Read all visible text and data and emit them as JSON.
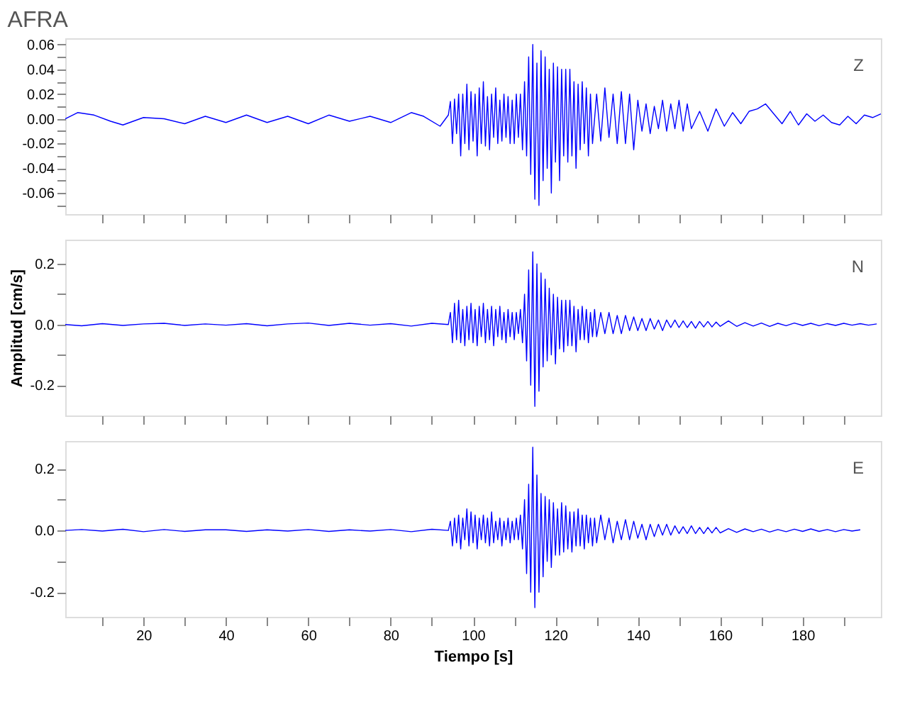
{
  "chart_data": [
    {
      "type": "line",
      "title": "AFRA",
      "annotations": [
        "Z"
      ],
      "xlim": [
        1,
        199
      ],
      "ylim": [
        -0.077,
        0.065
      ],
      "grid": false,
      "tick_labels": "y",
      "marker": "none",
      "line_style": "solid",
      "xticks": [
        {
          "value": 10,
          "label": null
        },
        {
          "value": 20,
          "label": null
        },
        {
          "value": 30,
          "label": null
        },
        {
          "value": 40,
          "label": null
        },
        {
          "value": 50,
          "label": null
        },
        {
          "value": 60,
          "label": null
        },
        {
          "value": 70,
          "label": null
        },
        {
          "value": 80,
          "label": null
        },
        {
          "value": 90,
          "label": null
        },
        {
          "value": 100,
          "label": null
        },
        {
          "value": 110,
          "label": null
        },
        {
          "value": 120,
          "label": null
        },
        {
          "value": 130,
          "label": null
        },
        {
          "value": 140,
          "label": null
        },
        {
          "value": 150,
          "label": null
        },
        {
          "value": 160,
          "label": null
        },
        {
          "value": 170,
          "label": null
        },
        {
          "value": 180,
          "label": null
        },
        {
          "value": 190,
          "label": null
        }
      ],
      "yticks": [
        {
          "value": -0.07,
          "label": null
        },
        {
          "value": -0.06,
          "label": "-0.06"
        },
        {
          "value": -0.05,
          "label": null
        },
        {
          "value": -0.04,
          "label": "-0.04"
        },
        {
          "value": -0.03,
          "label": null
        },
        {
          "value": -0.02,
          "label": "-0.02"
        },
        {
          "value": -0.01,
          "label": null
        },
        {
          "value": 0,
          "label": "0.00"
        },
        {
          "value": 0.01,
          "label": null
        },
        {
          "value": 0.02,
          "label": "0.02"
        },
        {
          "value": 0.03,
          "label": null
        },
        {
          "value": 0.04,
          "label": "0.04"
        },
        {
          "value": 0.05,
          "label": null
        },
        {
          "value": 0.06,
          "label": "0.06"
        }
      ],
      "series": [
        {
          "color": "#0000ff",
          "x": [
            1,
            4,
            8,
            12,
            15,
            20,
            25,
            30,
            35,
            40,
            45,
            50,
            55,
            60,
            65,
            70,
            75,
            80,
            85,
            88,
            92,
            94,
            94.5,
            95,
            95.5,
            96,
            96.5,
            97,
            97.5,
            98,
            98.5,
            99,
            99.5,
            100,
            100.5,
            101,
            101.5,
            102,
            102.5,
            103,
            103.5,
            104,
            104.5,
            105,
            105.5,
            106,
            106.5,
            107,
            107.5,
            108,
            108.5,
            109,
            109.5,
            110,
            110.5,
            111,
            111.5,
            112,
            112.5,
            113,
            113.5,
            114,
            114.5,
            115,
            115.5,
            116,
            116.5,
            117,
            117.5,
            118,
            118.5,
            119,
            119.5,
            120,
            120.5,
            121,
            121.5,
            122,
            122.5,
            123,
            123.5,
            124,
            124.5,
            125,
            125.5,
            126,
            126.5,
            127,
            127.5,
            128,
            128.5,
            129,
            130,
            131,
            132,
            133,
            134,
            135,
            136,
            137,
            138,
            139,
            140,
            141,
            142,
            143,
            144,
            145,
            146,
            147,
            148,
            149,
            150,
            151,
            152,
            153,
            155,
            157,
            159,
            161,
            163,
            165,
            167,
            169,
            171,
            173,
            175,
            177,
            179,
            181,
            183,
            185,
            187,
            189,
            191,
            193,
            195,
            197,
            199
          ],
          "values": [
            0,
            0.005,
            0.003,
            -0.002,
            -0.005,
            0.001,
            0.0,
            -0.004,
            0.002,
            -0.003,
            0.003,
            -0.003,
            0.002,
            -0.004,
            0.003,
            -0.002,
            0.002,
            -0.003,
            0.005,
            0.002,
            -0.006,
            0.003,
            0.014,
            -0.02,
            0.016,
            -0.012,
            0.02,
            -0.03,
            0.02,
            -0.02,
            0.028,
            -0.025,
            0.022,
            -0.018,
            0.02,
            -0.03,
            0.025,
            -0.02,
            0.03,
            -0.022,
            0.018,
            -0.025,
            0.02,
            -0.015,
            0.025,
            -0.02,
            0.015,
            -0.018,
            0.02,
            -0.015,
            0.018,
            -0.02,
            0.015,
            -0.02,
            0.02,
            -0.015,
            0.02,
            -0.025,
            0.03,
            -0.03,
            0.05,
            -0.045,
            0.06,
            -0.065,
            0.045,
            -0.07,
            0.055,
            -0.05,
            0.05,
            -0.04,
            0.04,
            -0.06,
            0.045,
            -0.035,
            0.042,
            -0.05,
            0.04,
            -0.03,
            0.04,
            -0.035,
            0.04,
            -0.03,
            0.03,
            -0.04,
            0.028,
            -0.025,
            0.03,
            -0.02,
            0.025,
            -0.03,
            0.02,
            -0.02,
            0.02,
            -0.018,
            0.025,
            -0.015,
            0.02,
            -0.02,
            0.022,
            -0.02,
            0.02,
            -0.025,
            0.015,
            -0.01,
            0.012,
            -0.012,
            0.01,
            -0.008,
            0.015,
            -0.01,
            0.012,
            -0.008,
            0.015,
            -0.01,
            0.012,
            -0.008,
            0.006,
            -0.01,
            0.008,
            -0.006,
            0.005,
            -0.004,
            0.006,
            0.008,
            0.012,
            0.004,
            -0.004,
            0.006,
            -0.005,
            0.004,
            -0.002,
            0.003,
            -0.003,
            -0.005,
            0.002,
            -0.004,
            0.003,
            0.001,
            0.004
          ]
        }
      ]
    },
    {
      "type": "line",
      "ylabel": "Amplitud [cm/s]",
      "annotations": [
        "N"
      ],
      "xlim": [
        1,
        199
      ],
      "ylim": [
        -0.3,
        0.28
      ],
      "grid": false,
      "tick_labels": "y",
      "marker": "none",
      "line_style": "solid",
      "xticks": [
        {
          "value": 10,
          "label": null
        },
        {
          "value": 20,
          "label": null
        },
        {
          "value": 30,
          "label": null
        },
        {
          "value": 40,
          "label": null
        },
        {
          "value": 50,
          "label": null
        },
        {
          "value": 60,
          "label": null
        },
        {
          "value": 70,
          "label": null
        },
        {
          "value": 80,
          "label": null
        },
        {
          "value": 90,
          "label": null
        },
        {
          "value": 100,
          "label": null
        },
        {
          "value": 110,
          "label": null
        },
        {
          "value": 120,
          "label": null
        },
        {
          "value": 130,
          "label": null
        },
        {
          "value": 140,
          "label": null
        },
        {
          "value": 150,
          "label": null
        },
        {
          "value": 160,
          "label": null
        },
        {
          "value": 170,
          "label": null
        },
        {
          "value": 180,
          "label": null
        },
        {
          "value": 190,
          "label": null
        }
      ],
      "yticks": [
        {
          "value": -0.2,
          "label": "-0.2"
        },
        {
          "value": -0.1,
          "label": null
        },
        {
          "value": 0,
          "label": "0.0"
        },
        {
          "value": 0.1,
          "label": null
        },
        {
          "value": 0.2,
          "label": "0.2"
        }
      ],
      "series": [
        {
          "color": "#0000ff",
          "x": [
            1,
            5,
            10,
            15,
            20,
            25,
            30,
            35,
            40,
            45,
            50,
            55,
            60,
            65,
            70,
            75,
            80,
            85,
            90,
            94,
            94.5,
            95,
            95.5,
            96,
            96.5,
            97,
            97.5,
            98,
            98.5,
            99,
            99.5,
            100,
            100.5,
            101,
            101.5,
            102,
            102.5,
            103,
            103.5,
            104,
            104.5,
            105,
            105.5,
            106,
            106.5,
            107,
            107.5,
            108,
            108.5,
            109,
            109.5,
            110,
            110.5,
            111,
            111.5,
            112,
            112.5,
            113,
            113.5,
            114,
            114.5,
            115,
            115.5,
            116,
            116.5,
            117,
            117.5,
            118,
            118.5,
            119,
            119.5,
            120,
            120.5,
            121,
            121.5,
            122,
            122.5,
            123,
            123.5,
            124,
            124.5,
            125,
            125.5,
            126,
            126.5,
            127,
            127.5,
            128,
            128.5,
            129,
            129.5,
            130,
            131,
            132,
            133,
            134,
            135,
            136,
            137,
            138,
            139,
            140,
            141,
            142,
            143,
            144,
            145,
            146,
            147,
            148,
            149,
            150,
            151,
            152,
            153,
            154,
            155,
            156,
            157,
            158,
            159,
            160,
            162,
            164,
            166,
            168,
            170,
            172,
            174,
            176,
            178,
            180,
            182,
            184,
            186,
            188,
            190,
            192,
            194,
            196,
            198
          ],
          "values": [
            0,
            -0.004,
            0.003,
            -0.003,
            0.002,
            0.004,
            -0.003,
            0.002,
            -0.002,
            0.003,
            -0.004,
            0.002,
            0.005,
            -0.003,
            0.004,
            -0.002,
            0.003,
            -0.005,
            0.004,
            0.0,
            0.04,
            -0.06,
            0.07,
            -0.05,
            0.08,
            -0.06,
            0.05,
            -0.07,
            0.06,
            -0.05,
            0.07,
            -0.06,
            0.05,
            -0.07,
            0.06,
            -0.04,
            0.07,
            -0.06,
            0.05,
            -0.05,
            0.06,
            -0.07,
            0.05,
            -0.04,
            0.06,
            -0.05,
            0.04,
            -0.06,
            0.05,
            -0.04,
            0.04,
            -0.05,
            0.04,
            -0.03,
            0.05,
            -0.06,
            0.1,
            -0.12,
            0.18,
            -0.2,
            0.24,
            -0.27,
            0.2,
            -0.22,
            0.17,
            -0.14,
            0.15,
            -0.12,
            0.12,
            -0.1,
            0.1,
            -0.13,
            0.09,
            -0.08,
            0.08,
            -0.09,
            0.08,
            -0.07,
            0.08,
            -0.07,
            0.06,
            -0.09,
            0.05,
            -0.05,
            0.06,
            -0.05,
            0.05,
            -0.06,
            0.04,
            -0.04,
            0.05,
            -0.04,
            0.04,
            -0.03,
            0.04,
            -0.03,
            0.03,
            -0.03,
            0.03,
            -0.02,
            0.025,
            -0.02,
            0.02,
            -0.02,
            0.02,
            -0.015,
            0.015,
            -0.02,
            0.015,
            -0.01,
            0.015,
            -0.01,
            0.012,
            -0.01,
            0.01,
            -0.012,
            0.01,
            -0.008,
            0.01,
            -0.008,
            0.008,
            -0.006,
            0.012,
            -0.006,
            0.006,
            -0.005,
            0.005,
            -0.006,
            0.004,
            -0.004,
            0.005,
            -0.003,
            0.004,
            -0.004,
            0.003,
            -0.003,
            0.004,
            -0.002,
            0.003,
            -0.002,
            0.002
          ]
        }
      ]
    },
    {
      "type": "line",
      "xlabel": "Tiempo [s]",
      "annotations": [
        "E"
      ],
      "xlim": [
        1,
        199
      ],
      "ylim": [
        -0.28,
        0.29
      ],
      "grid": false,
      "marker": "none",
      "line_style": "solid",
      "xticks": [
        {
          "value": 10,
          "label": null
        },
        20,
        {
          "value": 30,
          "label": null
        },
        40,
        {
          "value": 50,
          "label": null
        },
        60,
        {
          "value": 70,
          "label": null
        },
        80,
        {
          "value": 90,
          "label": null
        },
        100,
        {
          "value": 110,
          "label": null
        },
        120,
        {
          "value": 130,
          "label": null
        },
        140,
        {
          "value": 150,
          "label": null
        },
        160,
        {
          "value": 170,
          "label": null
        },
        180,
        {
          "value": 190,
          "label": null
        }
      ],
      "yticks": [
        {
          "value": -0.2,
          "label": "-0.2"
        },
        {
          "value": -0.1,
          "label": null
        },
        {
          "value": 0,
          "label": "0.0"
        },
        {
          "value": 0.1,
          "label": null
        },
        {
          "value": 0.2,
          "label": "0.2"
        }
      ],
      "series": [
        {
          "color": "#0000ff",
          "x": [
            1,
            5,
            10,
            15,
            20,
            25,
            30,
            35,
            40,
            45,
            50,
            55,
            60,
            65,
            70,
            75,
            80,
            85,
            90,
            94,
            94.5,
            95,
            95.5,
            96,
            96.5,
            97,
            97.5,
            98,
            98.5,
            99,
            99.5,
            100,
            100.5,
            101,
            101.5,
            102,
            102.5,
            103,
            103.5,
            104,
            104.5,
            105,
            105.5,
            106,
            106.5,
            107,
            107.5,
            108,
            108.5,
            109,
            109.5,
            110,
            110.5,
            111,
            111.5,
            112,
            112.5,
            113,
            113.5,
            114,
            114.5,
            115,
            115.5,
            116,
            116.5,
            117,
            117.5,
            118,
            118.5,
            119,
            119.5,
            120,
            120.5,
            121,
            121.5,
            122,
            122.5,
            123,
            123.5,
            124,
            124.5,
            125,
            125.5,
            126,
            126.5,
            127,
            127.5,
            128,
            128.5,
            129,
            129.5,
            130,
            131,
            132,
            133,
            134,
            135,
            136,
            137,
            138,
            139,
            140,
            141,
            142,
            143,
            144,
            145,
            146,
            147,
            148,
            149,
            150,
            151,
            152,
            153,
            154,
            155,
            156,
            157,
            158,
            159,
            160,
            162,
            164,
            166,
            168,
            170,
            172,
            174,
            176,
            178,
            180,
            182,
            184,
            186,
            188,
            190,
            192,
            194
          ],
          "values": [
            0,
            0.003,
            -0.002,
            0.004,
            -0.004,
            0.003,
            -0.003,
            0.002,
            0.002,
            -0.003,
            0.002,
            -0.002,
            0.003,
            -0.003,
            0.002,
            -0.002,
            0.003,
            -0.004,
            0.004,
            0.0,
            0.03,
            -0.05,
            0.04,
            -0.04,
            0.05,
            -0.06,
            0.04,
            -0.03,
            0.07,
            -0.05,
            0.06,
            -0.04,
            0.05,
            -0.06,
            0.04,
            -0.03,
            0.05,
            -0.04,
            0.04,
            -0.05,
            0.06,
            -0.04,
            0.03,
            -0.03,
            0.04,
            -0.05,
            0.03,
            -0.03,
            0.04,
            -0.04,
            0.03,
            -0.03,
            0.04,
            -0.03,
            0.05,
            -0.06,
            0.1,
            -0.14,
            0.15,
            -0.2,
            0.27,
            -0.25,
            0.18,
            -0.2,
            0.12,
            -0.15,
            0.11,
            -0.1,
            0.1,
            -0.12,
            0.09,
            -0.08,
            0.07,
            -0.08,
            0.09,
            -0.07,
            0.08,
            -0.06,
            0.06,
            -0.07,
            0.06,
            -0.05,
            0.07,
            -0.05,
            0.05,
            -0.06,
            0.05,
            -0.04,
            0.04,
            -0.05,
            0.04,
            -0.04,
            0.05,
            -0.03,
            0.04,
            -0.04,
            0.03,
            -0.03,
            0.035,
            -0.03,
            0.03,
            -0.025,
            0.02,
            -0.03,
            0.02,
            -0.02,
            0.02,
            -0.015,
            0.02,
            -0.015,
            0.015,
            -0.01,
            0.012,
            -0.01,
            0.015,
            -0.01,
            0.01,
            -0.01,
            0.01,
            -0.008,
            0.01,
            -0.008,
            0.006,
            -0.006,
            0.005,
            -0.004,
            0.004,
            -0.005,
            0.003,
            -0.004,
            0.004,
            -0.003,
            0.005,
            -0.003,
            0.003,
            -0.004,
            0.003,
            -0.002,
            0.002
          ]
        }
      ]
    }
  ]
}
